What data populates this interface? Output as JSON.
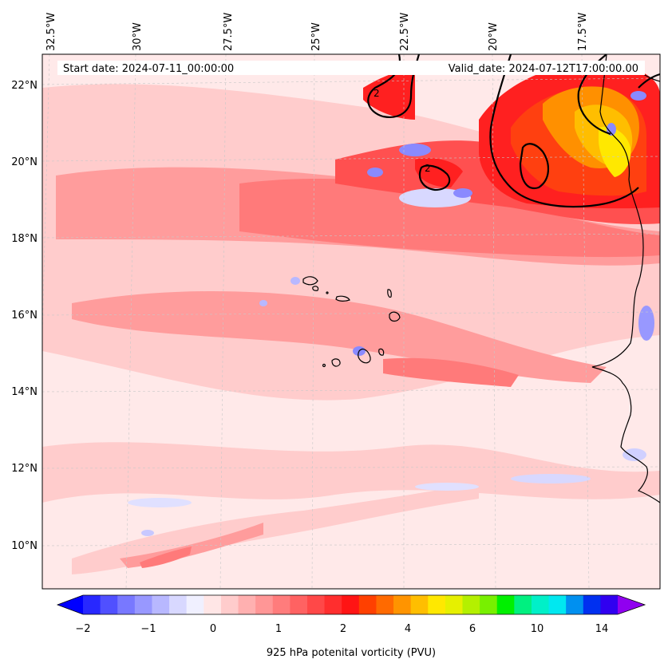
{
  "map": {
    "lon_labels": [
      "32.5°W",
      "30°W",
      "27.5°W",
      "25°W",
      "22.5°W",
      "20°W",
      "17.5°W"
    ],
    "lat_labels": [
      "22°N",
      "20°N",
      "18°N",
      "16°N",
      "14°N",
      "12°N",
      "10°N"
    ],
    "start_date": "Start date: 2024-07-11_00:00:00",
    "valid_date": "Valid_date: 2024-07-12T17:00:00.00",
    "contour_label": "2",
    "colors": {
      "background": "#ffe9e9",
      "light_pink": "#ffcccc",
      "pink": "#ff9c9c",
      "salmon": "#ff7a7a",
      "red_mid": "#ff5050",
      "red": "#ff2020",
      "orange_red": "#ff4010",
      "orange": "#ff9000",
      "yellow": "#ffe800",
      "light_blue": "#d8d8ff",
      "blue": "#8a8aff",
      "coast": "#000000"
    }
  },
  "colorbar": {
    "label": "925 hPa potenital vorticity (PVU)",
    "ticks": [
      "−2",
      "−1",
      "0",
      "1",
      "2",
      "4",
      "6",
      "10",
      "14"
    ],
    "colors": [
      "#0000ff",
      "#2828ff",
      "#5050ff",
      "#7878ff",
      "#9898ff",
      "#b8b8ff",
      "#d8d8ff",
      "#f0f0ff",
      "#ffe6e6",
      "#ffcccc",
      "#ffb0b0",
      "#ff9696",
      "#ff7c7c",
      "#ff6262",
      "#ff4848",
      "#ff2e2e",
      "#ff1414",
      "#ff4000",
      "#ff6a00",
      "#ff9400",
      "#ffbe00",
      "#ffe800",
      "#e6f000",
      "#b4f000",
      "#78f000",
      "#00f000",
      "#00f080",
      "#00f0c8",
      "#00e8f0",
      "#0090f0",
      "#0030f0",
      "#3000f0",
      "#9000f0"
    ]
  }
}
